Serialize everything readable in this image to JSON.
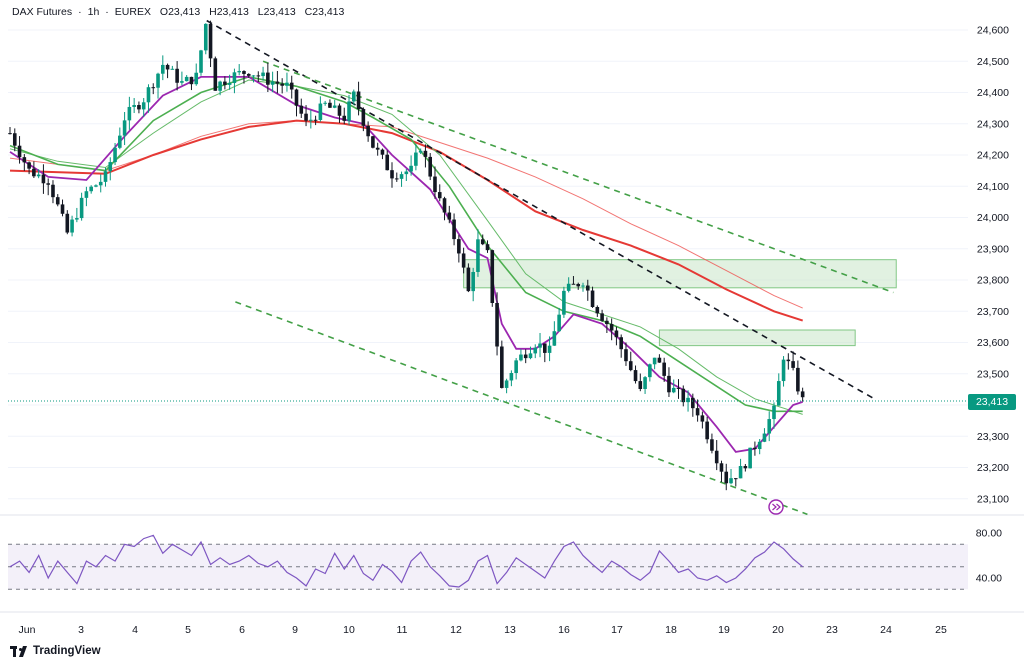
{
  "header": {
    "symbol": "DAX Futures",
    "timeframe": "1h",
    "exchange": "EUREX",
    "open": "O23,413",
    "high": "H23,413",
    "low": "L23,413",
    "close": "C23,413"
  },
  "last_price_label": "23,413",
  "branding": "TradingView",
  "colors": {
    "up": "#089981",
    "down": "#131722",
    "ema_fast": "#9c27b0",
    "ema_mid": "#4caf50",
    "ema_slow": "#e53935",
    "trend_black": "#131722",
    "trend_green": "#43a047",
    "zone_fill": "#c8e6c9",
    "rsi_line": "#7e57c2"
  },
  "chart_data": {
    "type": "candlestick",
    "title": "DAX Futures · 1h · EUREX",
    "ylim": [
      23050,
      24650
    ],
    "y_ticks": [
      "24,600",
      "24,500",
      "24,400",
      "24,300",
      "24,200",
      "24,100",
      "24,000",
      "23,900",
      "23,800",
      "23,700",
      "23,600",
      "23,500",
      "23,400",
      "23,300",
      "23,200",
      "23,100"
    ],
    "x_ticks": [
      "Jun",
      "3",
      "4",
      "5",
      "6",
      "9",
      "10",
      "11",
      "12",
      "13",
      "16",
      "17",
      "18",
      "19",
      "20",
      "23",
      "24",
      "25"
    ],
    "last_price": 23413,
    "price_path": [
      [
        0,
        24270
      ],
      [
        2,
        24150
      ],
      [
        4,
        24120
      ],
      [
        6,
        23950
      ],
      [
        8,
        24080
      ],
      [
        10,
        24130
      ],
      [
        12,
        24320
      ],
      [
        14,
        24380
      ],
      [
        16,
        24490
      ],
      [
        18,
        24430
      ],
      [
        19.5,
        24450
      ],
      [
        20.5,
        24620
      ],
      [
        21.5,
        24420
      ],
      [
        23,
        24450
      ],
      [
        25,
        24470
      ],
      [
        27,
        24440
      ],
      [
        29,
        24420
      ],
      [
        31,
        24300
      ],
      [
        33,
        24360
      ],
      [
        35,
        24320
      ],
      [
        36,
        24390
      ],
      [
        38,
        24230
      ],
      [
        40,
        24140
      ],
      [
        42,
        24150
      ],
      [
        43,
        24230
      ],
      [
        45,
        24050
      ],
      [
        47,
        23900
      ],
      [
        48,
        23760
      ],
      [
        49,
        23920
      ],
      [
        50,
        23880
      ],
      [
        51.5,
        23450
      ],
      [
        53,
        23540
      ],
      [
        55,
        23600
      ],
      [
        56.5,
        23570
      ],
      [
        58,
        23760
      ],
      [
        60,
        23800
      ],
      [
        61,
        23730
      ],
      [
        63,
        23640
      ],
      [
        64.5,
        23550
      ],
      [
        66,
        23440
      ],
      [
        67.5,
        23560
      ],
      [
        69,
        23460
      ],
      [
        70.5,
        23420
      ],
      [
        72,
        23380
      ],
      [
        73.5,
        23270
      ],
      [
        75,
        23160
      ],
      [
        76.5,
        23190
      ],
      [
        78,
        23270
      ],
      [
        80,
        23380
      ],
      [
        81,
        23560
      ],
      [
        82,
        23500
      ],
      [
        83,
        23413
      ]
    ],
    "ema_fast_path": [
      [
        0,
        24210
      ],
      [
        4,
        24130
      ],
      [
        8,
        24120
      ],
      [
        12,
        24260
      ],
      [
        16,
        24390
      ],
      [
        20,
        24450
      ],
      [
        25,
        24450
      ],
      [
        30,
        24360
      ],
      [
        34,
        24320
      ],
      [
        37,
        24300
      ],
      [
        40,
        24200
      ],
      [
        44,
        24090
      ],
      [
        48,
        23900
      ],
      [
        50,
        23870
      ],
      [
        51.5,
        23660
      ],
      [
        53,
        23580
      ],
      [
        55,
        23580
      ],
      [
        57,
        23620
      ],
      [
        59,
        23690
      ],
      [
        62,
        23660
      ],
      [
        65,
        23580
      ],
      [
        68,
        23490
      ],
      [
        71,
        23440
      ],
      [
        74,
        23330
      ],
      [
        76,
        23250
      ],
      [
        78,
        23260
      ],
      [
        80,
        23330
      ],
      [
        82,
        23400
      ],
      [
        83,
        23410
      ]
    ],
    "ema_mid_path": [
      [
        0,
        24230
      ],
      [
        5,
        24170
      ],
      [
        10,
        24150
      ],
      [
        15,
        24310
      ],
      [
        20,
        24400
      ],
      [
        25,
        24450
      ],
      [
        30,
        24420
      ],
      [
        35,
        24370
      ],
      [
        38,
        24320
      ],
      [
        42,
        24250
      ],
      [
        46,
        24100
      ],
      [
        50,
        23910
      ],
      [
        54,
        23760
      ],
      [
        58,
        23700
      ],
      [
        62,
        23670
      ],
      [
        66,
        23620
      ],
      [
        70,
        23540
      ],
      [
        74,
        23460
      ],
      [
        77,
        23400
      ],
      [
        80,
        23380
      ],
      [
        83,
        23380
      ]
    ],
    "ema_mid2_path": [
      [
        0,
        24220
      ],
      [
        5,
        24180
      ],
      [
        10,
        24160
      ],
      [
        15,
        24270
      ],
      [
        20,
        24370
      ],
      [
        25,
        24440
      ],
      [
        30,
        24420
      ],
      [
        35,
        24390
      ],
      [
        40,
        24330
      ],
      [
        45,
        24200
      ],
      [
        50,
        23990
      ],
      [
        54,
        23820
      ],
      [
        58,
        23730
      ],
      [
        62,
        23690
      ],
      [
        66,
        23650
      ],
      [
        70,
        23580
      ],
      [
        74,
        23490
      ],
      [
        78,
        23420
      ],
      [
        83,
        23370
      ]
    ],
    "ema_slow_path": [
      [
        0,
        24150
      ],
      [
        10,
        24140
      ],
      [
        15,
        24200
      ],
      [
        20,
        24250
      ],
      [
        25,
        24290
      ],
      [
        30,
        24310
      ],
      [
        35,
        24300
      ],
      [
        40,
        24270
      ],
      [
        45,
        24210
      ],
      [
        50,
        24120
      ],
      [
        55,
        24020
      ],
      [
        60,
        23960
      ],
      [
        65,
        23910
      ],
      [
        70,
        23850
      ],
      [
        75,
        23770
      ],
      [
        80,
        23700
      ],
      [
        83,
        23670
      ]
    ],
    "ema_slow2_path": [
      [
        0,
        24190
      ],
      [
        10,
        24150
      ],
      [
        15,
        24200
      ],
      [
        20,
        24260
      ],
      [
        25,
        24300
      ],
      [
        30,
        24310
      ],
      [
        35,
        24300
      ],
      [
        40,
        24290
      ],
      [
        45,
        24240
      ],
      [
        50,
        24190
      ],
      [
        55,
        24130
      ],
      [
        60,
        24060
      ],
      [
        65,
        23980
      ],
      [
        70,
        23910
      ],
      [
        75,
        23830
      ],
      [
        80,
        23750
      ],
      [
        83,
        23710
      ]
    ],
    "trendlines": [
      {
        "style": "black-dashed",
        "from": [
          20.6,
          24630
        ],
        "to": [
          90.5,
          23420
        ]
      },
      {
        "style": "green-dashed",
        "from": [
          26.5,
          24500
        ],
        "to": [
          92.5,
          23760
        ]
      },
      {
        "style": "green-dashed",
        "from": [
          23.6,
          23730
        ],
        "to": [
          83.5,
          23050
        ]
      }
    ],
    "zones": [
      {
        "x1": 47.5,
        "x2": 92.8,
        "y1": 23865,
        "y2": 23775
      },
      {
        "x1": 68.0,
        "x2": 88.5,
        "y1": 23640,
        "y2": 23590
      }
    ],
    "rsi": {
      "ylim": [
        20,
        100
      ],
      "y_ticks": [
        "80.00",
        "40.00"
      ],
      "band_upper": 70,
      "band_mid": 50,
      "band_lower": 30,
      "path": [
        [
          0,
          50
        ],
        [
          1,
          55
        ],
        [
          2,
          45
        ],
        [
          3,
          60
        ],
        [
          4,
          40
        ],
        [
          5,
          55
        ],
        [
          6,
          45
        ],
        [
          7,
          35
        ],
        [
          8,
          55
        ],
        [
          9,
          50
        ],
        [
          10,
          60
        ],
        [
          11,
          55
        ],
        [
          12,
          70
        ],
        [
          13,
          68
        ],
        [
          14,
          75
        ],
        [
          15,
          78
        ],
        [
          16,
          62
        ],
        [
          17,
          70
        ],
        [
          18,
          65
        ],
        [
          19,
          60
        ],
        [
          20,
          72
        ],
        [
          21,
          52
        ],
        [
          22,
          58
        ],
        [
          23,
          52
        ],
        [
          24,
          55
        ],
        [
          25,
          60
        ],
        [
          26,
          53
        ],
        [
          27,
          50
        ],
        [
          28,
          55
        ],
        [
          29,
          45
        ],
        [
          30,
          40
        ],
        [
          31,
          33
        ],
        [
          32,
          48
        ],
        [
          33,
          44
        ],
        [
          34,
          62
        ],
        [
          35,
          48
        ],
        [
          36,
          60
        ],
        [
          37,
          44
        ],
        [
          38,
          38
        ],
        [
          39,
          52
        ],
        [
          40,
          46
        ],
        [
          41,
          36
        ],
        [
          42,
          55
        ],
        [
          43,
          63
        ],
        [
          44,
          50
        ],
        [
          45,
          42
        ],
        [
          46,
          33
        ],
        [
          47,
          32
        ],
        [
          48,
          38
        ],
        [
          49,
          55
        ],
        [
          50,
          60
        ],
        [
          51,
          35
        ],
        [
          52,
          45
        ],
        [
          53,
          58
        ],
        [
          54,
          52
        ],
        [
          55,
          46
        ],
        [
          56,
          40
        ],
        [
          57,
          55
        ],
        [
          58,
          68
        ],
        [
          59,
          72
        ],
        [
          60,
          60
        ],
        [
          61,
          52
        ],
        [
          62,
          45
        ],
        [
          63,
          55
        ],
        [
          64,
          50
        ],
        [
          65,
          43
        ],
        [
          66,
          38
        ],
        [
          67,
          45
        ],
        [
          68,
          64
        ],
        [
          69,
          55
        ],
        [
          70,
          45
        ],
        [
          71,
          48
        ],
        [
          72,
          40
        ],
        [
          73,
          38
        ],
        [
          74,
          42
        ],
        [
          75,
          36
        ],
        [
          76,
          40
        ],
        [
          77,
          48
        ],
        [
          78,
          58
        ],
        [
          79,
          63
        ],
        [
          80,
          72
        ],
        [
          81,
          66
        ],
        [
          82,
          57
        ],
        [
          83,
          50
        ]
      ]
    }
  }
}
